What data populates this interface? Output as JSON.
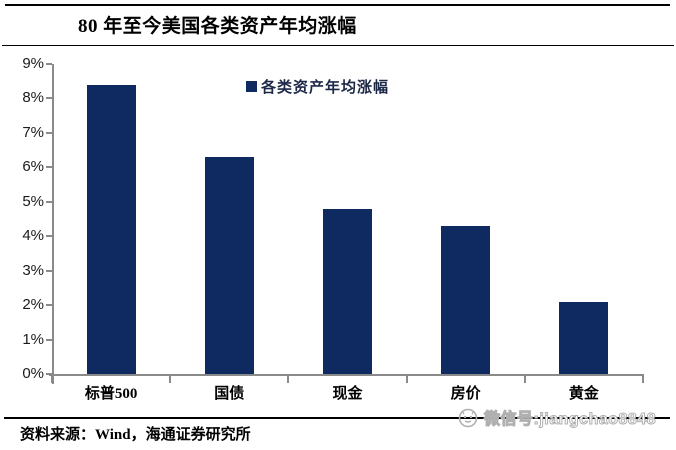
{
  "chart_data": {
    "type": "bar",
    "title": "80 年至今美国各类资产年均涨幅",
    "categories": [
      "标普500",
      "国债",
      "现金",
      "房价",
      "黄金"
    ],
    "values": [
      8.4,
      6.3,
      4.8,
      4.3,
      2.1
    ],
    "series_name": "各类资产年均涨幅",
    "legend": [
      "各类资产年均涨幅"
    ],
    "legend_position": "top-center",
    "xlabel": "",
    "ylabel": "",
    "ylim": [
      0,
      9
    ],
    "ytick_step": 1,
    "ytick_labels": [
      "0%",
      "1%",
      "2%",
      "3%",
      "4%",
      "5%",
      "6%",
      "7%",
      "8%",
      "9%"
    ],
    "grid": false,
    "bar_color": "#0e2a60",
    "axis_color": "#8a8a8a"
  },
  "footer": {
    "source": "资料来源：Wind，海通证券研究所"
  },
  "watermark": {
    "text": "微信号:jiangchao8848",
    "icon": "face-icon",
    "color": "#b0b0b0"
  }
}
